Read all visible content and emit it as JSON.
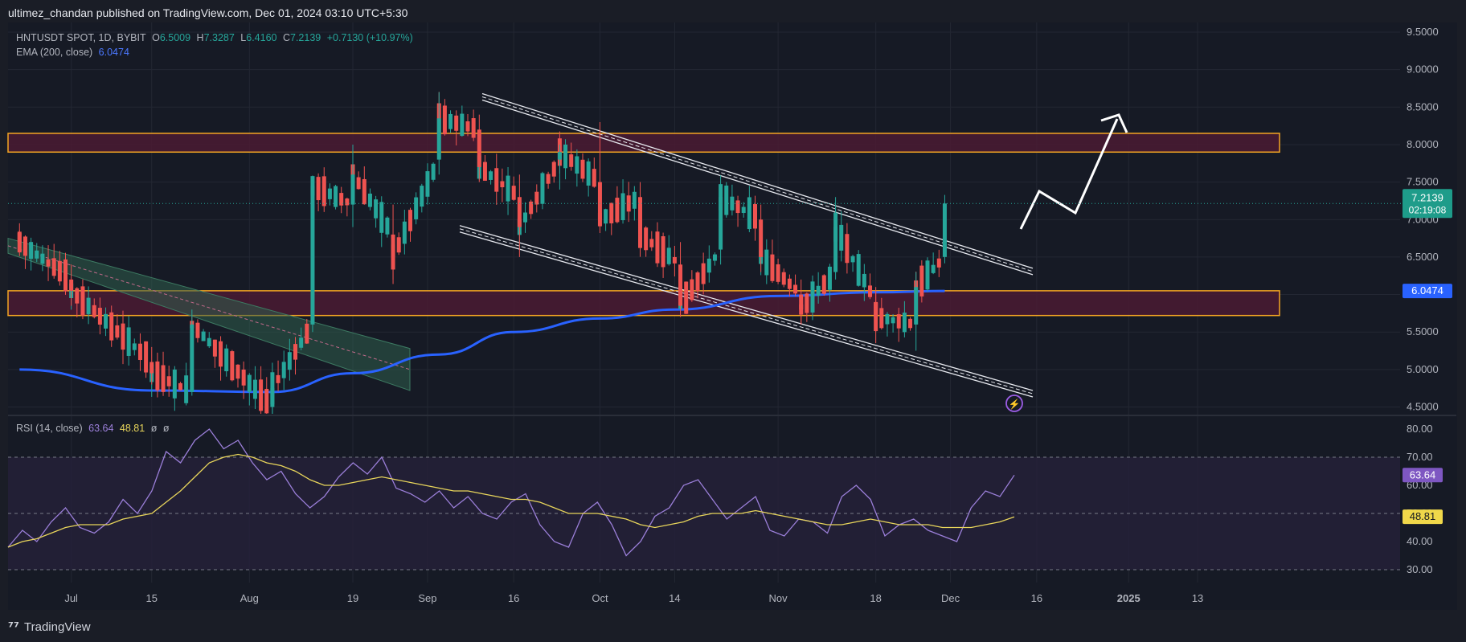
{
  "header": {
    "publisher_text": "ultimez_chandan published on TradingView.com, Dec 01, 2024 03:10 UTC+5:30"
  },
  "legend": {
    "symbol": "HNTUSDT SPOT, 1D, BYBIT",
    "o_label": "O",
    "o_value": "6.5009",
    "h_label": "H",
    "h_value": "7.3287",
    "l_label": "L",
    "l_value": "6.4160",
    "c_label": "C",
    "c_value": "7.2139",
    "change": "+0.7130 (+10.97%)",
    "ema_label": "EMA (200, close)",
    "ema_value": "6.0474",
    "rsi_label": "RSI (14, close)",
    "rsi_value": "63.64",
    "rsi_ma_value": "48.81",
    "rsi_extra_1": "ø",
    "rsi_extra_2": "ø"
  },
  "footer": {
    "brand": "TradingView"
  },
  "colors": {
    "background": "#161a25",
    "up": "#26a69a",
    "down": "#ef5350",
    "ema": "#2962ff",
    "zone_fill": "#4a1b33",
    "zone_border": "#f5a623",
    "channel": "#d1d4dc",
    "old_channel": "#2f5e4c",
    "rsi_line": "#9b7fd9",
    "rsi_ma": "#e8d55b",
    "rsi_band": "#25213a"
  },
  "chart_data": [
    {
      "type": "candlestick",
      "symbol": "HNTUSDT SPOT, 1D, BYBIT",
      "x_ticks": [
        "Jul",
        "15",
        "Aug",
        "19",
        "Sep",
        "16",
        "Oct",
        "14",
        "Nov",
        "18",
        "Dec",
        "16",
        "2025",
        "13"
      ],
      "y_ticks": [
        "9.5000",
        "9.0000",
        "8.5000",
        "8.0000",
        "7.5000",
        "7.0000",
        "6.5000",
        "6.0000",
        "5.5000",
        "5.0000",
        "4.5000"
      ],
      "ylim": [
        4.4,
        9.55
      ],
      "last_price_label": "7.2139",
      "countdown_label": "02:19:08",
      "ema_price_label": "6.0474",
      "ohlc_samples": [
        {
          "date": "2024-06-22",
          "o": 6.82,
          "h": 6.95,
          "l": 6.6,
          "c": 6.7
        },
        {
          "date": "2024-07-01",
          "o": 6.2,
          "h": 6.4,
          "l": 5.85,
          "c": 6.05
        },
        {
          "date": "2024-07-15",
          "o": 5.1,
          "h": 5.3,
          "l": 4.8,
          "c": 4.95
        },
        {
          "date": "2024-07-22",
          "o": 4.7,
          "h": 5.8,
          "l": 4.65,
          "c": 5.6
        },
        {
          "date": "2024-08-05",
          "o": 4.5,
          "h": 4.9,
          "l": 4.4,
          "c": 4.75
        },
        {
          "date": "2024-08-12",
          "o": 5.6,
          "h": 7.5,
          "l": 5.5,
          "c": 7.45
        },
        {
          "date": "2024-08-19",
          "o": 7.2,
          "h": 8.0,
          "l": 6.9,
          "c": 7.6
        },
        {
          "date": "2024-08-26",
          "o": 6.8,
          "h": 7.2,
          "l": 6.2,
          "c": 6.5
        },
        {
          "date": "2024-09-03",
          "o": 7.8,
          "h": 8.7,
          "l": 7.6,
          "c": 8.35
        },
        {
          "date": "2024-09-10",
          "o": 8.2,
          "h": 8.4,
          "l": 7.5,
          "c": 7.7
        },
        {
          "date": "2024-09-17",
          "o": 7.3,
          "h": 7.6,
          "l": 6.5,
          "c": 6.9
        },
        {
          "date": "2024-09-24",
          "o": 7.8,
          "h": 8.0,
          "l": 7.4,
          "c": 7.9
        },
        {
          "date": "2024-10-01",
          "o": 7.5,
          "h": 8.3,
          "l": 6.9,
          "c": 7.0
        },
        {
          "date": "2024-10-08",
          "o": 7.3,
          "h": 7.5,
          "l": 6.6,
          "c": 6.8
        },
        {
          "date": "2024-10-15",
          "o": 6.4,
          "h": 6.7,
          "l": 5.7,
          "c": 5.85
        },
        {
          "date": "2024-10-22",
          "o": 6.6,
          "h": 7.45,
          "l": 6.4,
          "c": 7.3
        },
        {
          "date": "2024-10-29",
          "o": 7.0,
          "h": 7.2,
          "l": 6.3,
          "c": 6.5
        },
        {
          "date": "2024-11-05",
          "o": 6.0,
          "h": 6.2,
          "l": 5.6,
          "c": 5.8
        },
        {
          "date": "2024-11-11",
          "o": 6.3,
          "h": 7.3,
          "l": 6.2,
          "c": 6.9
        },
        {
          "date": "2024-11-18",
          "o": 5.9,
          "h": 6.1,
          "l": 5.5,
          "c": 5.7
        },
        {
          "date": "2024-11-25",
          "o": 5.6,
          "h": 6.3,
          "l": 5.25,
          "c": 6.1
        },
        {
          "date": "2024-11-30",
          "o": 6.5009,
          "h": 7.3287,
          "l": 6.416,
          "c": 7.2139
        }
      ],
      "ema_200": {
        "name": "EMA (200, close)",
        "points": [
          {
            "date": "2024-06-22",
            "value": 5.0
          },
          {
            "date": "2024-07-15",
            "value": 4.72
          },
          {
            "date": "2024-08-05",
            "value": 4.7
          },
          {
            "date": "2024-08-19",
            "value": 4.95
          },
          {
            "date": "2024-09-03",
            "value": 5.2
          },
          {
            "date": "2024-09-16",
            "value": 5.5
          },
          {
            "date": "2024-10-01",
            "value": 5.68
          },
          {
            "date": "2024-10-14",
            "value": 5.8
          },
          {
            "date": "2024-11-01",
            "value": 5.98
          },
          {
            "date": "2024-11-18",
            "value": 6.03
          },
          {
            "date": "2024-11-30",
            "value": 6.0474
          }
        ]
      },
      "zones": [
        {
          "from": 7.9,
          "to": 8.15
        },
        {
          "from": 5.72,
          "to": 6.05
        }
      ]
    },
    {
      "type": "line",
      "name": "RSI (14, close)",
      "y_ticks": [
        "80.00",
        "70.00",
        "60.00",
        "50.00",
        "40.00",
        "30.00"
      ],
      "ylim": [
        27,
        83
      ],
      "band": [
        30,
        70
      ],
      "midline": 50,
      "current_labels": [
        "63.64",
        "48.81"
      ],
      "series": [
        {
          "values": [
            38,
            44,
            40,
            47,
            52,
            45,
            43,
            47,
            55,
            50,
            58,
            72,
            68,
            76,
            80,
            73,
            76,
            68,
            62,
            65,
            57,
            52,
            56,
            63,
            68,
            64,
            70,
            59,
            57,
            54,
            58,
            52,
            56,
            50,
            48,
            54,
            57,
            46,
            40,
            38,
            50,
            54,
            46,
            35,
            40,
            49,
            52,
            60,
            62,
            55,
            48,
            52,
            56,
            44,
            42,
            48,
            47,
            43,
            56,
            60,
            55,
            42,
            46,
            48,
            44,
            42,
            40,
            52,
            58,
            56,
            63.64
          ]
        },
        {
          "values": [
            38,
            40,
            41,
            43,
            45,
            46,
            46,
            46,
            48,
            49,
            50,
            54,
            58,
            63,
            68,
            70,
            71,
            70,
            68,
            67,
            65,
            62,
            60,
            60,
            61,
            62,
            63,
            62,
            61,
            60,
            59,
            58,
            58,
            57,
            56,
            55,
            55,
            54,
            52,
            50,
            50,
            50,
            49,
            48,
            46,
            45,
            46,
            47,
            49,
            50,
            50,
            50,
            51,
            50,
            49,
            48,
            47,
            46,
            46,
            47,
            48,
            47,
            46,
            46,
            46,
            45,
            45,
            45,
            46,
            47,
            48.81
          ]
        }
      ]
    }
  ]
}
